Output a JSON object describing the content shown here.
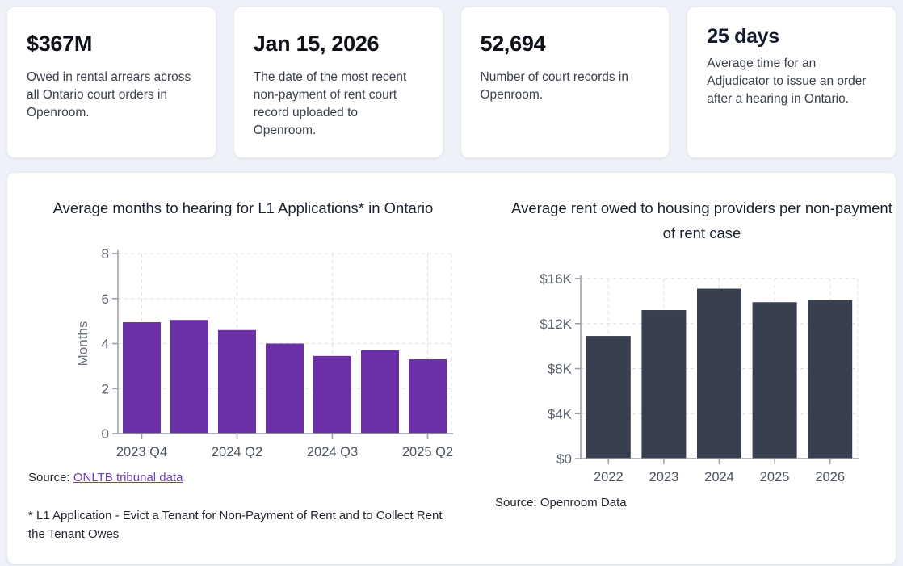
{
  "stats": {
    "cards": [
      {
        "value": "$367M",
        "description": "Owed in rental arrears across all Ontario court orders in Openroom."
      },
      {
        "value": "Jan 15, 2026",
        "description": "The date of the most recent non-payment of rent court record uploaded to Openroom."
      },
      {
        "value": "52,694",
        "description": "Number of court records in Openroom."
      },
      {
        "value": "25 days",
        "description": "Average time for an Adjudicator to issue an order after a hearing in Ontario."
      }
    ]
  },
  "charts_panel": {
    "left_source_prefix": "Source:",
    "left_source_link": "ONLTB tribunal data",
    "right_source": "Source: Openroom Data",
    "footnote": "* L1 Application - Evict a Tenant for Non-Payment of Rent and to Collect Rent the Tenant Owes"
  },
  "colors": {
    "purple_bar": "#6b30a8",
    "dark_bar": "#384050",
    "link_purple": "#6d3fb0",
    "page_background": "#eef1f7",
    "card_background": "#ffffff"
  },
  "chart_data": [
    {
      "type": "bar",
      "title": "Average months to hearing for L1 Applications* in Ontario",
      "xlabel": "",
      "ylabel": "Months",
      "ylim": [
        0,
        8
      ],
      "yticks": [
        {
          "value": 0,
          "label": "0"
        },
        {
          "value": 2,
          "label": "2"
        },
        {
          "value": 4,
          "label": "4"
        },
        {
          "value": 6,
          "label": "6"
        },
        {
          "value": 8,
          "label": "8"
        }
      ],
      "categories": [
        "2023 Q4",
        "",
        "2024 Q2",
        "",
        "2024 Q3",
        "",
        "2025 Q2"
      ],
      "values": [
        4.95,
        5.05,
        4.6,
        4.0,
        3.45,
        3.7,
        3.3
      ],
      "bar_color": "#6b30a8",
      "grid": "dashed",
      "legend": "none"
    },
    {
      "type": "bar",
      "title": "Average rent owed to housing providers per non-payment of rent case",
      "xlabel": "",
      "ylabel": "",
      "ylim": [
        0,
        16000
      ],
      "yticks": [
        {
          "value": 0,
          "label": "$0"
        },
        {
          "value": 4000,
          "label": "$4K"
        },
        {
          "value": 8000,
          "label": "$8K"
        },
        {
          "value": 12000,
          "label": "$12K"
        },
        {
          "value": 16000,
          "label": "$16K"
        }
      ],
      "categories": [
        "2022",
        "2023",
        "2024",
        "2025",
        "2026"
      ],
      "values": [
        10900,
        13200,
        15100,
        13900,
        14100
      ],
      "bar_color": "#384050",
      "grid": "dashed",
      "legend": "none"
    }
  ]
}
